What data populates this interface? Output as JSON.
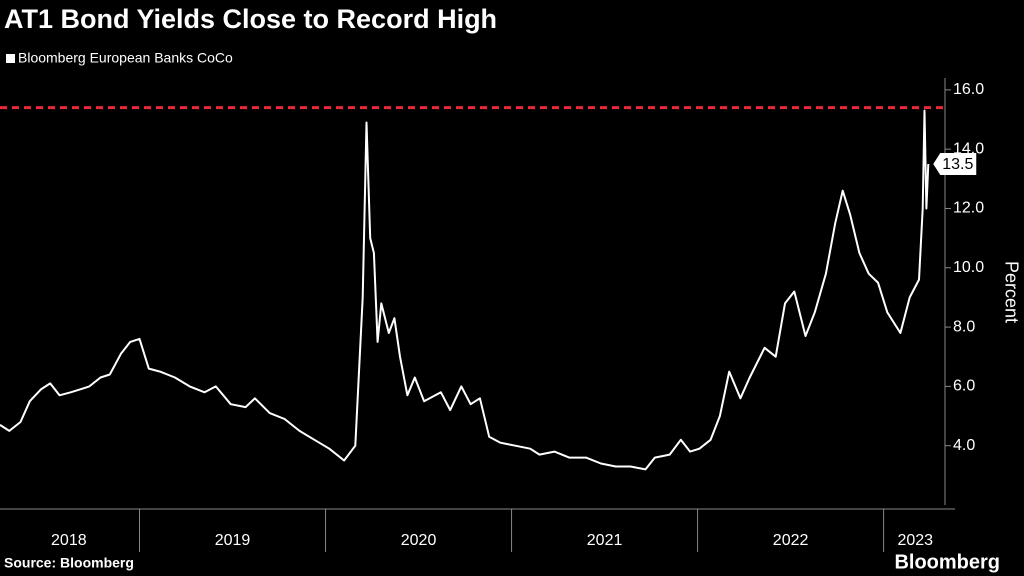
{
  "chart_data": {
    "type": "line",
    "title": "AT1 Bond Yields Close to Record High",
    "source": "Source: Bloomberg",
    "brand": "Bloomberg",
    "y_axis_label": "Percent",
    "last_value_label": "13.5",
    "record_line": 15.4,
    "record_line_color": "#e8283c",
    "xlim": [
      2018.25,
      2023.33
    ],
    "ylim": [
      2,
      16.4
    ],
    "xticks": [
      {
        "value": 2018.62,
        "label": "2018"
      },
      {
        "value": 2019.5,
        "label": "2019"
      },
      {
        "value": 2020.5,
        "label": "2020"
      },
      {
        "value": 2021.5,
        "label": "2021"
      },
      {
        "value": 2022.5,
        "label": "2022"
      },
      {
        "value": 2023.17,
        "label": "2023"
      }
    ],
    "xbounds": [
      2019,
      2020,
      2021,
      2022,
      2023
    ],
    "yticks": [
      {
        "value": 4,
        "label": "4.0"
      },
      {
        "value": 6,
        "label": "6.0"
      },
      {
        "value": 8,
        "label": "8.0"
      },
      {
        "value": 10,
        "label": "10.0"
      },
      {
        "value": 12,
        "label": "12.0"
      },
      {
        "value": 14,
        "label": "14.0"
      },
      {
        "value": 16,
        "label": "16.0"
      }
    ],
    "series": [
      {
        "name": "Bloomberg European Banks CoCo",
        "color": "#ffffff",
        "x": [
          2018.25,
          2018.3,
          2018.36,
          2018.41,
          2018.47,
          2018.52,
          2018.57,
          2018.63,
          2018.68,
          2018.73,
          2018.79,
          2018.84,
          2018.9,
          2018.95,
          2019.0,
          2019.05,
          2019.11,
          2019.19,
          2019.27,
          2019.35,
          2019.41,
          2019.49,
          2019.57,
          2019.62,
          2019.7,
          2019.78,
          2019.86,
          2019.94,
          2020.02,
          2020.1,
          2020.16,
          2020.2,
          2020.22,
          2020.24,
          2020.26,
          2020.28,
          2020.3,
          2020.34,
          2020.37,
          2020.4,
          2020.44,
          2020.48,
          2020.53,
          2020.62,
          2020.67,
          2020.73,
          2020.78,
          2020.83,
          2020.88,
          2020.94,
          2021.02,
          2021.1,
          2021.15,
          2021.23,
          2021.31,
          2021.4,
          2021.48,
          2021.56,
          2021.64,
          2021.72,
          2021.77,
          2021.85,
          2021.91,
          2021.96,
          2022.01,
          2022.07,
          2022.12,
          2022.17,
          2022.23,
          2022.28,
          2022.36,
          2022.42,
          2022.47,
          2022.52,
          2022.58,
          2022.63,
          2022.69,
          2022.74,
          2022.78,
          2022.82,
          2022.87,
          2022.92,
          2022.97,
          2023.02,
          2023.09,
          2023.14,
          2023.19,
          2023.21,
          2023.22,
          2023.23,
          2023.24
        ],
        "values": [
          4.7,
          4.5,
          4.8,
          5.5,
          5.9,
          6.1,
          5.7,
          5.8,
          5.9,
          6.0,
          6.3,
          6.4,
          7.1,
          7.5,
          7.6,
          6.6,
          6.5,
          6.3,
          6.0,
          5.8,
          6.0,
          5.4,
          5.3,
          5.6,
          5.1,
          4.9,
          4.5,
          4.2,
          3.9,
          3.5,
          4.0,
          9.0,
          14.9,
          11.0,
          10.5,
          7.5,
          8.8,
          7.8,
          8.3,
          7.0,
          5.7,
          6.3,
          5.5,
          5.8,
          5.2,
          6.0,
          5.4,
          5.6,
          4.3,
          4.1,
          4.0,
          3.9,
          3.7,
          3.8,
          3.6,
          3.6,
          3.4,
          3.3,
          3.3,
          3.2,
          3.6,
          3.7,
          4.2,
          3.8,
          3.9,
          4.2,
          5.0,
          6.5,
          5.6,
          6.3,
          7.3,
          7.0,
          8.8,
          9.2,
          7.7,
          8.5,
          9.8,
          11.5,
          12.6,
          11.8,
          10.5,
          9.8,
          9.5,
          8.5,
          7.8,
          9.0,
          9.6,
          12.0,
          15.3,
          12.0,
          13.5
        ]
      }
    ]
  }
}
